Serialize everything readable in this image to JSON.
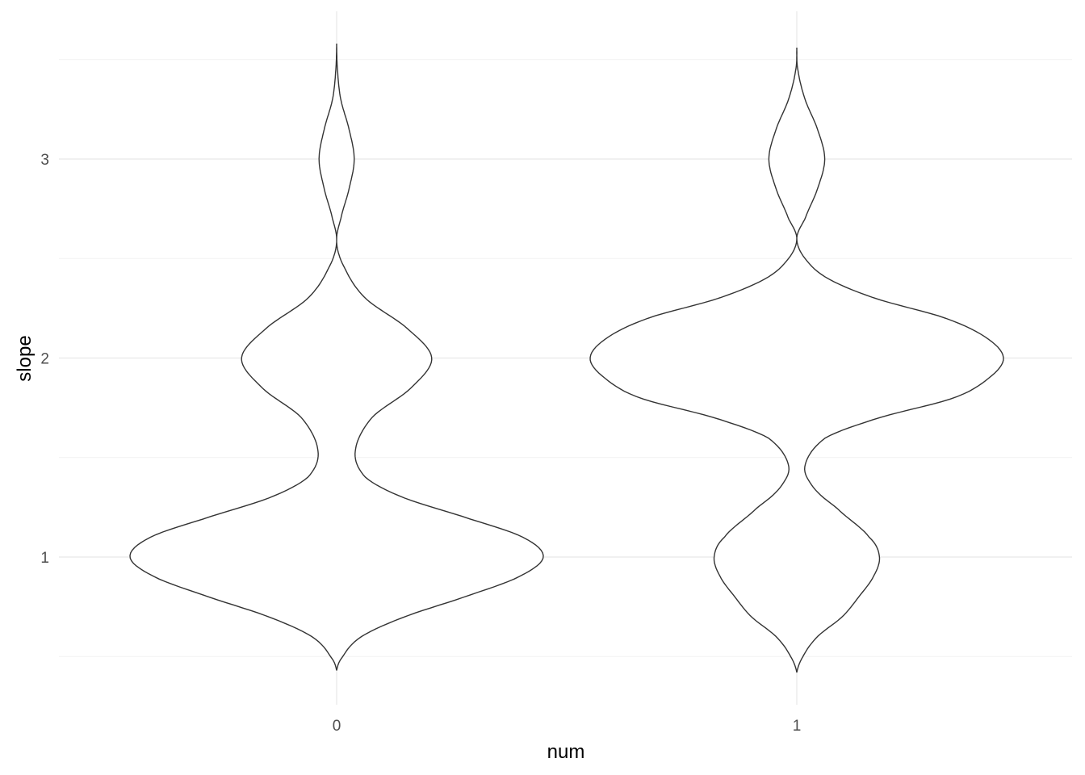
{
  "chart_data": {
    "type": "violin",
    "title": "",
    "xlabel": "num",
    "ylabel": "slope",
    "categories": [
      "0",
      "1"
    ],
    "y_ticks": [
      1,
      2,
      3
    ],
    "y_tick_labels": [
      "1",
      "2",
      "3"
    ],
    "ylim": [
      0.45,
      3.55
    ],
    "grid": true,
    "theme": "minimal",
    "colors": {
      "outline": "#333333",
      "fill": "#ffffff",
      "grid": "#ebebeb"
    },
    "series": [
      {
        "category": "0",
        "y_range": [
          0.43,
          3.58
        ],
        "density_profile": [
          [
            0.43,
            0.0
          ],
          [
            0.5,
            0.03
          ],
          [
            0.6,
            0.12
          ],
          [
            0.7,
            0.33
          ],
          [
            0.8,
            0.62
          ],
          [
            0.9,
            0.88
          ],
          [
            1.0,
            1.0
          ],
          [
            1.1,
            0.9
          ],
          [
            1.2,
            0.62
          ],
          [
            1.3,
            0.32
          ],
          [
            1.4,
            0.14
          ],
          [
            1.53,
            0.09
          ],
          [
            1.7,
            0.17
          ],
          [
            1.85,
            0.36
          ],
          [
            2.0,
            0.46
          ],
          [
            2.15,
            0.34
          ],
          [
            2.3,
            0.14
          ],
          [
            2.45,
            0.04
          ],
          [
            2.58,
            0.0
          ],
          [
            2.7,
            0.02
          ],
          [
            2.85,
            0.06
          ],
          [
            3.0,
            0.085
          ],
          [
            3.15,
            0.06
          ],
          [
            3.3,
            0.02
          ],
          [
            3.45,
            0.004
          ],
          [
            3.58,
            0.0
          ]
        ]
      },
      {
        "category": "1",
        "y_range": [
          0.42,
          3.56
        ],
        "density_profile": [
          [
            0.42,
            0.0
          ],
          [
            0.5,
            0.03
          ],
          [
            0.6,
            0.1
          ],
          [
            0.7,
            0.22
          ],
          [
            0.8,
            0.3
          ],
          [
            0.9,
            0.37
          ],
          [
            1.0,
            0.4
          ],
          [
            1.1,
            0.35
          ],
          [
            1.25,
            0.19
          ],
          [
            1.35,
            0.08
          ],
          [
            1.46,
            0.04
          ],
          [
            1.6,
            0.14
          ],
          [
            1.7,
            0.4
          ],
          [
            1.8,
            0.76
          ],
          [
            1.9,
            0.93
          ],
          [
            2.0,
            1.0
          ],
          [
            2.1,
            0.92
          ],
          [
            2.2,
            0.72
          ],
          [
            2.3,
            0.38
          ],
          [
            2.4,
            0.15
          ],
          [
            2.5,
            0.04
          ],
          [
            2.6,
            0.0
          ],
          [
            2.7,
            0.04
          ],
          [
            2.85,
            0.1
          ],
          [
            3.0,
            0.135
          ],
          [
            3.15,
            0.1
          ],
          [
            3.3,
            0.04
          ],
          [
            3.45,
            0.005
          ],
          [
            3.56,
            0.0
          ]
        ]
      }
    ]
  }
}
